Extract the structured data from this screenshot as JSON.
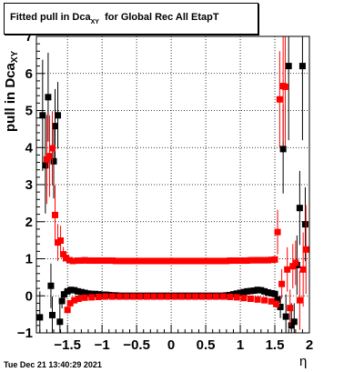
{
  "title": {
    "main": "Fitted pull in Dca",
    "sub": "xy",
    "suffix": "for Global Rec All EtapT"
  },
  "timestamp": "Tue Dec 21 13:40:29 2021",
  "chart_data": {
    "type": "scatter",
    "title": "Fitted pull in Dca_xy for Global Rec All EtapT",
    "xlabel": "η",
    "ylabel": "pull in Dca_XY",
    "ylabel_main": "pull in Dca",
    "ylabel_sub": "XY",
    "xlim": [
      -1.95,
      2.0
    ],
    "ylim": [
      -1,
      7
    ],
    "x_ticks": [
      -1.5,
      -1,
      -0.5,
      0,
      0.5,
      1,
      1.5,
      2
    ],
    "x_tick_labels": [
      "−1.5",
      "−1",
      "−0.5",
      "0",
      "0.5",
      "1",
      "1.5",
      "2"
    ],
    "y_ticks": [
      -1,
      0,
      1,
      2,
      3,
      4,
      5,
      6,
      7
    ],
    "y_tick_labels": [
      "−1",
      "0",
      "1",
      "2",
      "3",
      "4",
      "5",
      "6",
      "7"
    ],
    "grid": true,
    "series": [
      {
        "color": "#000000",
        "points": [
          [
            -1.9,
            -0.58,
            0.7
          ],
          [
            -1.86,
            4.87,
            1.5
          ],
          [
            -1.82,
            3.52,
            1.3
          ],
          [
            -1.78,
            5.36,
            1.2
          ],
          [
            -1.74,
            0.27,
            0.6
          ],
          [
            -1.72,
            -0.52,
            0.5
          ],
          [
            -1.7,
            3.63,
            1.0
          ],
          [
            -1.68,
            4.58,
            1.0
          ],
          [
            -1.64,
            4.87,
            0.9
          ],
          [
            -1.61,
            -0.7,
            0.5
          ],
          [
            -1.58,
            -0.14,
            0.2
          ],
          [
            -1.55,
            0.04,
            0.1
          ],
          [
            -1.5,
            0.12,
            0.08
          ],
          [
            -1.45,
            0.16,
            0.06
          ],
          [
            -1.4,
            0.15,
            0.05
          ],
          [
            -1.35,
            0.12,
            0.04
          ],
          [
            -1.3,
            0.1,
            0.04
          ],
          [
            -1.25,
            0.08,
            0.04
          ],
          [
            -1.2,
            0.06,
            0.04
          ],
          [
            -1.15,
            0.05,
            0.03
          ],
          [
            -1.1,
            0.05,
            0.03
          ],
          [
            -1.05,
            0.04,
            0.03
          ],
          [
            -1.0,
            0.03,
            0.03
          ],
          [
            -0.95,
            0.03,
            0.03
          ],
          [
            -0.9,
            0.02,
            0.03
          ],
          [
            -0.85,
            0.01,
            0.03
          ],
          [
            -0.8,
            0.01,
            0.03
          ],
          [
            -0.75,
            0.0,
            0.03
          ],
          [
            -0.7,
            0.0,
            0.03
          ],
          [
            -0.65,
            0.0,
            0.03
          ],
          [
            -0.6,
            0.0,
            0.03
          ],
          [
            -0.55,
            0.0,
            0.03
          ],
          [
            -0.5,
            0.0,
            0.03
          ],
          [
            -0.45,
            0.0,
            0.03
          ],
          [
            -0.4,
            0.0,
            0.03
          ],
          [
            -0.35,
            0.0,
            0.03
          ],
          [
            -0.3,
            0.0,
            0.03
          ],
          [
            -0.25,
            0.0,
            0.03
          ],
          [
            -0.2,
            0.0,
            0.03
          ],
          [
            -0.15,
            0.0,
            0.03
          ],
          [
            -0.1,
            0.0,
            0.03
          ],
          [
            -0.05,
            0.0,
            0.03
          ],
          [
            0.0,
            0.0,
            0.03
          ],
          [
            0.05,
            0.0,
            0.03
          ],
          [
            0.1,
            0.0,
            0.03
          ],
          [
            0.15,
            0.0,
            0.03
          ],
          [
            0.2,
            0.0,
            0.03
          ],
          [
            0.25,
            0.0,
            0.03
          ],
          [
            0.3,
            0.0,
            0.03
          ],
          [
            0.35,
            0.0,
            0.03
          ],
          [
            0.4,
            0.0,
            0.03
          ],
          [
            0.45,
            0.0,
            0.03
          ],
          [
            0.5,
            0.0,
            0.03
          ],
          [
            0.55,
            0.0,
            0.03
          ],
          [
            0.6,
            0.0,
            0.03
          ],
          [
            0.65,
            0.0,
            0.03
          ],
          [
            0.7,
            0.0,
            0.03
          ],
          [
            0.75,
            0.0,
            0.03
          ],
          [
            0.8,
            0.01,
            0.03
          ],
          [
            0.85,
            0.02,
            0.03
          ],
          [
            0.9,
            0.04,
            0.03
          ],
          [
            0.95,
            0.06,
            0.03
          ],
          [
            1.0,
            0.08,
            0.03
          ],
          [
            1.05,
            0.1,
            0.03
          ],
          [
            1.1,
            0.12,
            0.04
          ],
          [
            1.15,
            0.13,
            0.04
          ],
          [
            1.2,
            0.14,
            0.04
          ],
          [
            1.25,
            0.16,
            0.04
          ],
          [
            1.3,
            0.15,
            0.05
          ],
          [
            1.35,
            0.12,
            0.05
          ],
          [
            1.4,
            0.09,
            0.06
          ],
          [
            1.45,
            0.07,
            0.08
          ],
          [
            1.5,
            0.05,
            0.1
          ],
          [
            1.54,
            -0.1,
            0.2
          ],
          [
            1.58,
            -0.3,
            0.3
          ],
          [
            1.62,
            3.96,
            1.2
          ],
          [
            1.66,
            -0.56,
            0.6
          ],
          [
            1.7,
            6.2,
            2.0
          ],
          [
            1.74,
            -0.8,
            0.6
          ],
          [
            1.78,
            -0.7,
            0.5
          ],
          [
            1.82,
            0.83,
            0.8
          ],
          [
            1.86,
            2.37,
            1.0
          ],
          [
            1.9,
            6.2,
            2.0
          ],
          [
            1.94,
            1.93,
            1.0
          ]
        ]
      },
      {
        "color": "#ff0000",
        "points": [
          [
            -1.8,
            3.68,
            1.2
          ],
          [
            -1.76,
            3.77,
            1.1
          ],
          [
            -1.72,
            3.98,
            1.0
          ],
          [
            -1.68,
            2.18,
            0.8
          ],
          [
            -1.64,
            1.44,
            0.5
          ],
          [
            -1.6,
            1.49,
            0.4
          ],
          [
            -1.56,
            1.12,
            0.2
          ],
          [
            -1.52,
            1.02,
            0.1
          ],
          [
            -1.5,
            -0.38,
            0.1
          ],
          [
            -1.47,
            0.96,
            0.08
          ],
          [
            -1.46,
            -0.2,
            0.08
          ],
          [
            -1.42,
            0.94,
            0.06
          ],
          [
            -1.4,
            -0.12,
            0.06
          ],
          [
            -1.35,
            0.95,
            0.05
          ],
          [
            -1.34,
            -0.08,
            0.05
          ],
          [
            -1.3,
            0.95,
            0.04
          ],
          [
            -1.25,
            0.96,
            0.04
          ],
          [
            -1.25,
            -0.05,
            0.04
          ],
          [
            -1.2,
            0.95,
            0.04
          ],
          [
            -1.15,
            0.95,
            0.04
          ],
          [
            -1.15,
            -0.04,
            0.04
          ],
          [
            -1.1,
            0.95,
            0.04
          ],
          [
            -1.05,
            0.95,
            0.04
          ],
          [
            -1.05,
            -0.03,
            0.04
          ],
          [
            -1.0,
            0.95,
            0.03
          ],
          [
            -0.95,
            0.95,
            0.03
          ],
          [
            -0.95,
            -0.02,
            0.03
          ],
          [
            -0.9,
            0.95,
            0.03
          ],
          [
            -0.85,
            0.95,
            0.03
          ],
          [
            -0.85,
            -0.02,
            0.03
          ],
          [
            -0.8,
            0.94,
            0.03
          ],
          [
            -0.75,
            0.94,
            0.03
          ],
          [
            -0.75,
            -0.02,
            0.03
          ],
          [
            -0.7,
            0.94,
            0.03
          ],
          [
            -0.65,
            0.94,
            0.03
          ],
          [
            -0.65,
            -0.02,
            0.03
          ],
          [
            -0.6,
            0.94,
            0.03
          ],
          [
            -0.55,
            0.94,
            0.03
          ],
          [
            -0.55,
            -0.02,
            0.03
          ],
          [
            -0.5,
            0.94,
            0.03
          ],
          [
            -0.45,
            0.94,
            0.03
          ],
          [
            -0.45,
            -0.02,
            0.03
          ],
          [
            -0.4,
            0.94,
            0.03
          ],
          [
            -0.35,
            0.94,
            0.03
          ],
          [
            -0.35,
            -0.02,
            0.03
          ],
          [
            -0.3,
            0.94,
            0.03
          ],
          [
            -0.25,
            0.94,
            0.03
          ],
          [
            -0.25,
            -0.02,
            0.03
          ],
          [
            -0.2,
            0.94,
            0.03
          ],
          [
            -0.15,
            0.94,
            0.03
          ],
          [
            -0.15,
            -0.02,
            0.03
          ],
          [
            -0.1,
            0.94,
            0.03
          ],
          [
            -0.05,
            0.94,
            0.03
          ],
          [
            -0.05,
            -0.02,
            0.03
          ],
          [
            0.0,
            0.94,
            0.03
          ],
          [
            0.05,
            0.94,
            0.03
          ],
          [
            0.05,
            -0.02,
            0.03
          ],
          [
            0.1,
            0.94,
            0.03
          ],
          [
            0.15,
            0.94,
            0.03
          ],
          [
            0.15,
            -0.02,
            0.03
          ],
          [
            0.2,
            0.94,
            0.03
          ],
          [
            0.25,
            0.94,
            0.03
          ],
          [
            0.25,
            -0.02,
            0.03
          ],
          [
            0.3,
            0.94,
            0.03
          ],
          [
            0.35,
            0.94,
            0.03
          ],
          [
            0.35,
            -0.02,
            0.03
          ],
          [
            0.4,
            0.94,
            0.03
          ],
          [
            0.45,
            0.94,
            0.03
          ],
          [
            0.45,
            -0.02,
            0.03
          ],
          [
            0.5,
            0.94,
            0.03
          ],
          [
            0.55,
            0.94,
            0.03
          ],
          [
            0.55,
            -0.02,
            0.03
          ],
          [
            0.6,
            0.94,
            0.03
          ],
          [
            0.65,
            0.94,
            0.03
          ],
          [
            0.65,
            -0.02,
            0.03
          ],
          [
            0.7,
            0.94,
            0.03
          ],
          [
            0.75,
            0.94,
            0.03
          ],
          [
            0.75,
            -0.02,
            0.03
          ],
          [
            0.8,
            0.94,
            0.03
          ],
          [
            0.85,
            0.95,
            0.03
          ],
          [
            0.85,
            -0.03,
            0.03
          ],
          [
            0.9,
            0.95,
            0.03
          ],
          [
            0.95,
            0.95,
            0.03
          ],
          [
            0.95,
            -0.04,
            0.03
          ],
          [
            1.0,
            0.95,
            0.03
          ],
          [
            1.05,
            0.95,
            0.03
          ],
          [
            1.05,
            -0.06,
            0.03
          ],
          [
            1.1,
            0.95,
            0.04
          ],
          [
            1.15,
            0.96,
            0.04
          ],
          [
            1.15,
            -0.08,
            0.04
          ],
          [
            1.2,
            0.96,
            0.04
          ],
          [
            1.25,
            0.96,
            0.04
          ],
          [
            1.25,
            -0.1,
            0.04
          ],
          [
            1.3,
            0.96,
            0.05
          ],
          [
            1.35,
            0.96,
            0.05
          ],
          [
            1.35,
            -0.12,
            0.05
          ],
          [
            1.4,
            0.96,
            0.06
          ],
          [
            1.45,
            0.97,
            0.08
          ],
          [
            1.45,
            -0.15,
            0.06
          ],
          [
            1.5,
            0.98,
            0.1
          ],
          [
            1.52,
            -0.22,
            0.1
          ],
          [
            1.54,
            1.72,
            0.6
          ],
          [
            1.57,
            5.3,
            1.3
          ],
          [
            1.6,
            0.32,
            0.4
          ],
          [
            1.62,
            5.66,
            1.5
          ],
          [
            1.65,
            5.64,
            1.6
          ],
          [
            1.68,
            0.71,
            0.6
          ],
          [
            1.72,
            -0.33,
            0.5
          ],
          [
            1.76,
            0.8,
            0.6
          ],
          [
            1.8,
            0.89,
            0.6
          ],
          [
            1.86,
            -0.12,
            0.8
          ],
          [
            1.91,
            0.71,
            1.0
          ],
          [
            1.95,
            1.25,
            1.2
          ]
        ]
      }
    ]
  }
}
